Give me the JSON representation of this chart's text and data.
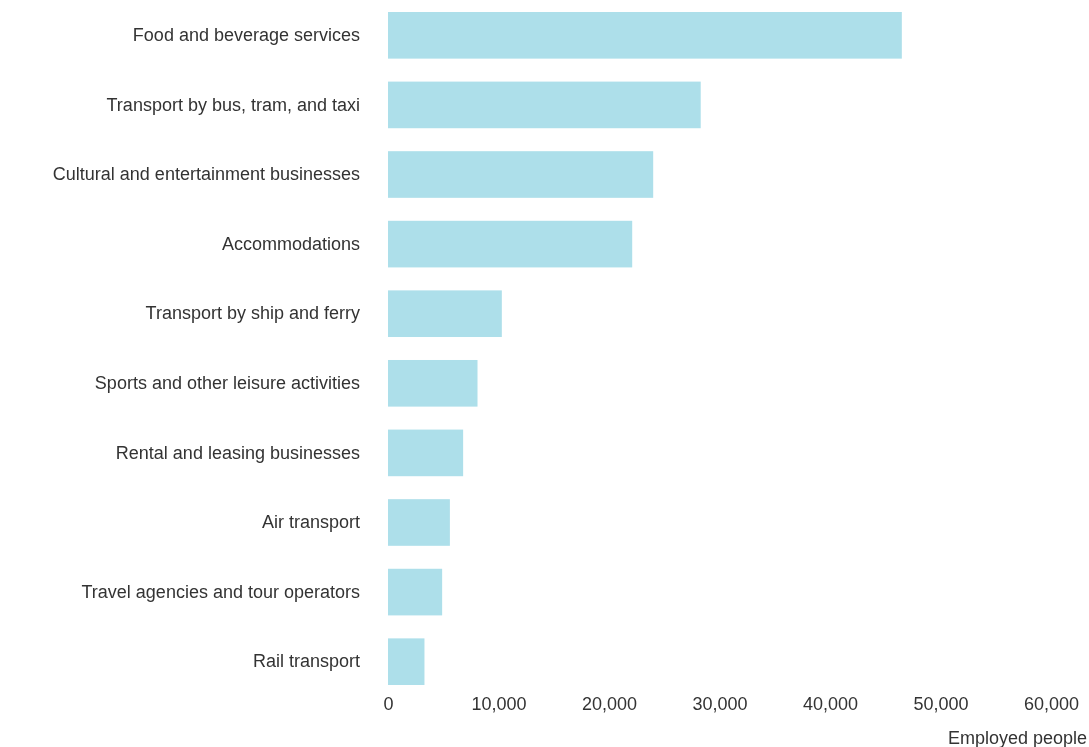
{
  "chart_data": {
    "type": "bar",
    "orientation": "horizontal",
    "xlabel": "Employed people",
    "categories": [
      "Food and beverage services",
      "Transport by bus, tram, and taxi",
      "Cultural and entertainment businesses",
      "Accommodations",
      "Transport by ship and ferry",
      "Sports and other leisure activities",
      "Rental and leasing businesses",
      "Air transport",
      "Travel agencies and tour operators",
      "Rail transport"
    ],
    "values": [
      46500,
      28300,
      24000,
      22100,
      10300,
      8100,
      6800,
      5600,
      4900,
      3300
    ],
    "color": "#addfea",
    "xlim": [
      0,
      60000
    ],
    "xticks": [
      {
        "value": 0,
        "label": "0"
      },
      {
        "value": 10000,
        "label": "10,000"
      },
      {
        "value": 20000,
        "label": "20,000"
      },
      {
        "value": 30000,
        "label": "30,000"
      },
      {
        "value": 40000,
        "label": "40,000"
      },
      {
        "value": 50000,
        "label": "50,000"
      },
      {
        "value": 60000,
        "label": "60,000"
      }
    ],
    "grid": false
  }
}
